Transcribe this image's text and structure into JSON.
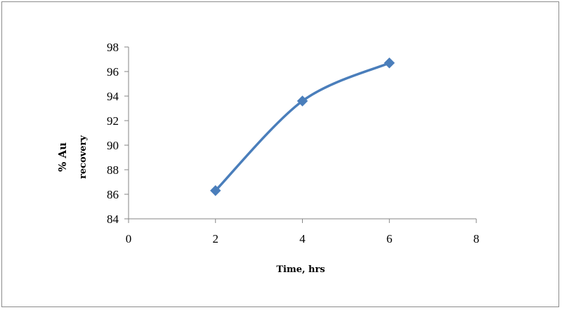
{
  "chart_data": {
    "type": "line",
    "title": "",
    "xlabel": "Time, hrs",
    "ylabel_lines": [
      "% Au",
      "recovery"
    ],
    "xlim": [
      0,
      8
    ],
    "ylim": [
      84,
      98
    ],
    "xticks": [
      0,
      2,
      4,
      6,
      8
    ],
    "yticks": [
      84,
      86,
      88,
      90,
      92,
      94,
      96,
      98
    ],
    "grid": false,
    "legend": "none",
    "series": [
      {
        "x": [
          2,
          4,
          6
        ],
        "y": [
          86.3,
          93.6,
          96.7
        ],
        "color": "#4a7ebb",
        "marker": "diamond",
        "smooth": true
      }
    ]
  }
}
